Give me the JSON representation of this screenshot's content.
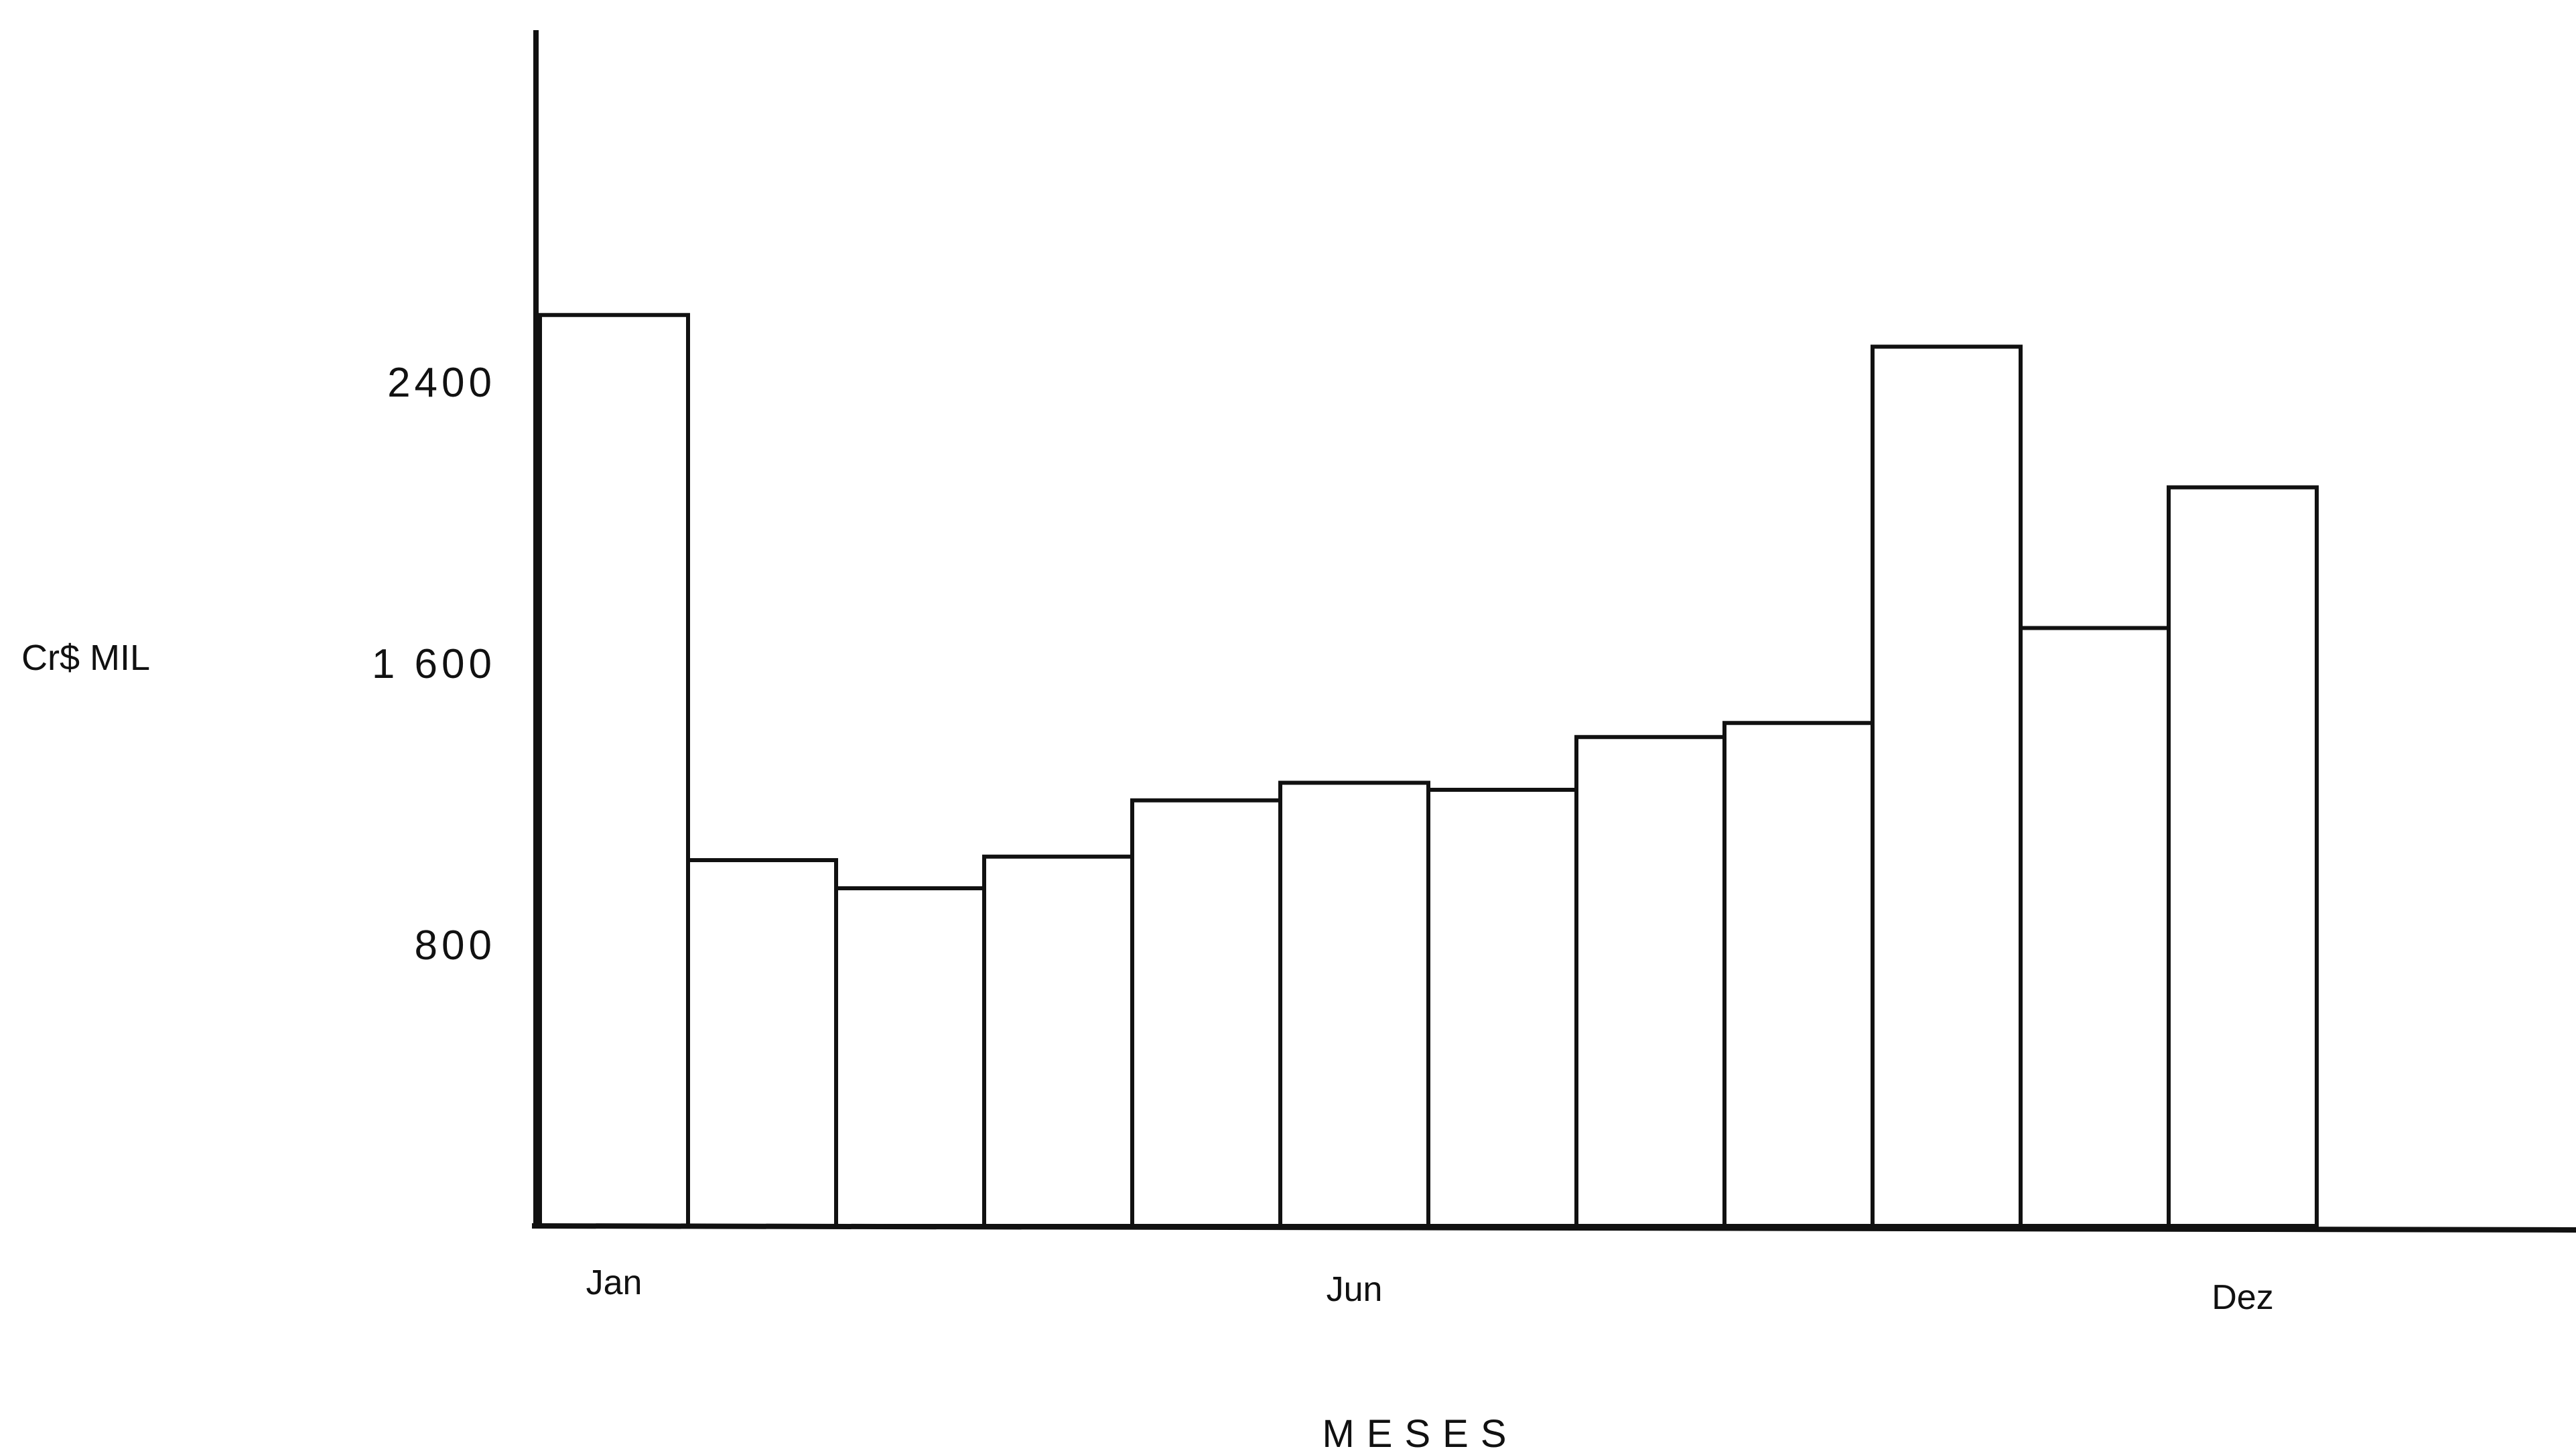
{
  "chart_data": {
    "type": "bar",
    "xlabel": "MESES",
    "ylabel": "Cr$ MIL",
    "ylim": [
      0,
      3400
    ],
    "yticks": [
      "800",
      "1 600",
      "2400"
    ],
    "ytick_values": [
      800,
      1600,
      2400
    ],
    "categories": [
      "Jan",
      "",
      "",
      "",
      "",
      "Jun",
      "",
      "",
      "",
      "",
      "",
      "Dez"
    ],
    "values": [
      2590,
      1040,
      960,
      1050,
      1210,
      1260,
      1240,
      1390,
      1430,
      2500,
      1700,
      2100
    ],
    "grid": false
  }
}
